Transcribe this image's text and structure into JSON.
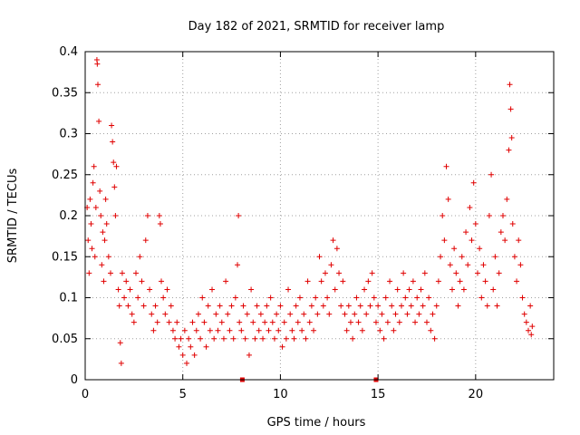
{
  "chart_data": {
    "type": "scatter",
    "title": "Day 182 of 2021, SRMTID for receiver lamp",
    "xlabel": "GPS time / hours",
    "ylabel": "SRMTID / TECUs",
    "xlim": [
      0,
      24
    ],
    "ylim": [
      0,
      0.4
    ],
    "xticks": [
      0,
      5,
      10,
      15,
      20
    ],
    "xtick_labels": [
      "0",
      "5",
      "10",
      "15",
      "20"
    ],
    "yticks": [
      0,
      0.05,
      0.1,
      0.15,
      0.2,
      0.25,
      0.3,
      0.35,
      0.4
    ],
    "ytick_labels": [
      "0",
      "0.05",
      "0.1",
      "0.15",
      "0.2",
      "0.25",
      "0.3",
      "0.35",
      "0.4"
    ],
    "grid": true,
    "marker": "plus",
    "color": "#e00000",
    "series": [
      {
        "name": "SRMTID",
        "points": [
          [
            0.1,
            0.21
          ],
          [
            0.15,
            0.17
          ],
          [
            0.2,
            0.13
          ],
          [
            0.25,
            0.22
          ],
          [
            0.3,
            0.19
          ],
          [
            0.35,
            0.16
          ],
          [
            0.4,
            0.24
          ],
          [
            0.45,
            0.26
          ],
          [
            0.5,
            0.15
          ],
          [
            0.55,
            0.21
          ],
          [
            0.6,
            0.39
          ],
          [
            0.62,
            0.385
          ],
          [
            0.65,
            0.36
          ],
          [
            0.7,
            0.315
          ],
          [
            0.75,
            0.23
          ],
          [
            0.8,
            0.2
          ],
          [
            0.85,
            0.14
          ],
          [
            0.9,
            0.18
          ],
          [
            0.95,
            0.12
          ],
          [
            1.0,
            0.17
          ],
          [
            1.05,
            0.22
          ],
          [
            1.1,
            0.19
          ],
          [
            1.2,
            0.15
          ],
          [
            1.3,
            0.13
          ],
          [
            1.35,
            0.31
          ],
          [
            1.4,
            0.29
          ],
          [
            1.45,
            0.265
          ],
          [
            1.5,
            0.235
          ],
          [
            1.55,
            0.2
          ],
          [
            1.6,
            0.26
          ],
          [
            1.7,
            0.11
          ],
          [
            1.75,
            0.09
          ],
          [
            1.8,
            0.045
          ],
          [
            1.85,
            0.02
          ],
          [
            1.9,
            0.13
          ],
          [
            2.0,
            0.1
          ],
          [
            2.1,
            0.12
          ],
          [
            2.2,
            0.09
          ],
          [
            2.3,
            0.11
          ],
          [
            2.4,
            0.08
          ],
          [
            2.5,
            0.07
          ],
          [
            2.6,
            0.13
          ],
          [
            2.7,
            0.1
          ],
          [
            2.8,
            0.15
          ],
          [
            2.9,
            0.12
          ],
          [
            3.0,
            0.09
          ],
          [
            3.1,
            0.17
          ],
          [
            3.2,
            0.2
          ],
          [
            3.3,
            0.11
          ],
          [
            3.4,
            0.08
          ],
          [
            3.5,
            0.06
          ],
          [
            3.6,
            0.09
          ],
          [
            3.7,
            0.07
          ],
          [
            3.8,
            0.2
          ],
          [
            3.85,
            0.19
          ],
          [
            3.9,
            0.12
          ],
          [
            4.0,
            0.1
          ],
          [
            4.1,
            0.08
          ],
          [
            4.2,
            0.11
          ],
          [
            4.3,
            0.07
          ],
          [
            4.4,
            0.09
          ],
          [
            4.5,
            0.06
          ],
          [
            4.6,
            0.05
          ],
          [
            4.7,
            0.07
          ],
          [
            4.8,
            0.04
          ],
          [
            4.9,
            0.05
          ],
          [
            5.0,
            0.03
          ],
          [
            5.1,
            0.06
          ],
          [
            5.2,
            0.02
          ],
          [
            5.3,
            0.05
          ],
          [
            5.4,
            0.04
          ],
          [
            5.5,
            0.07
          ],
          [
            5.6,
            0.03
          ],
          [
            5.7,
            0.06
          ],
          [
            5.8,
            0.08
          ],
          [
            5.9,
            0.05
          ],
          [
            6.0,
            0.1
          ],
          [
            6.1,
            0.07
          ],
          [
            6.2,
            0.04
          ],
          [
            6.3,
            0.09
          ],
          [
            6.4,
            0.06
          ],
          [
            6.5,
            0.11
          ],
          [
            6.6,
            0.05
          ],
          [
            6.7,
            0.08
          ],
          [
            6.8,
            0.06
          ],
          [
            6.9,
            0.09
          ],
          [
            7.0,
            0.07
          ],
          [
            7.1,
            0.05
          ],
          [
            7.2,
            0.12
          ],
          [
            7.3,
            0.08
          ],
          [
            7.4,
            0.06
          ],
          [
            7.5,
            0.09
          ],
          [
            7.6,
            0.05
          ],
          [
            7.7,
            0.1
          ],
          [
            7.8,
            0.14
          ],
          [
            7.9,
            0.07
          ],
          [
            7.85,
            0.2
          ],
          [
            8.0,
            0.06
          ],
          [
            8.1,
            0.09
          ],
          [
            8.2,
            0.05
          ],
          [
            8.3,
            0.08
          ],
          [
            8.4,
            0.03
          ],
          [
            8.5,
            0.11
          ],
          [
            8.6,
            0.07
          ],
          [
            8.7,
            0.05
          ],
          [
            8.8,
            0.09
          ],
          [
            8.9,
            0.06
          ],
          [
            9.0,
            0.08
          ],
          [
            9.1,
            0.05
          ],
          [
            9.2,
            0.07
          ],
          [
            9.3,
            0.09
          ],
          [
            9.4,
            0.06
          ],
          [
            9.5,
            0.1
          ],
          [
            9.6,
            0.07
          ],
          [
            9.7,
            0.05
          ],
          [
            9.8,
            0.08
          ],
          [
            9.9,
            0.06
          ],
          [
            10.0,
            0.09
          ],
          [
            10.1,
            0.04
          ],
          [
            10.2,
            0.07
          ],
          [
            10.3,
            0.05
          ],
          [
            10.4,
            0.11
          ],
          [
            10.5,
            0.08
          ],
          [
            10.6,
            0.06
          ],
          [
            10.7,
            0.05
          ],
          [
            10.8,
            0.09
          ],
          [
            10.9,
            0.07
          ],
          [
            11.0,
            0.1
          ],
          [
            11.1,
            0.06
          ],
          [
            11.2,
            0.08
          ],
          [
            11.3,
            0.05
          ],
          [
            11.4,
            0.12
          ],
          [
            11.5,
            0.07
          ],
          [
            11.6,
            0.09
          ],
          [
            11.7,
            0.06
          ],
          [
            11.8,
            0.1
          ],
          [
            11.9,
            0.08
          ],
          [
            12.0,
            0.15
          ],
          [
            12.1,
            0.12
          ],
          [
            12.2,
            0.09
          ],
          [
            12.3,
            0.13
          ],
          [
            12.4,
            0.1
          ],
          [
            12.5,
            0.08
          ],
          [
            12.6,
            0.14
          ],
          [
            12.7,
            0.17
          ],
          [
            12.8,
            0.11
          ],
          [
            12.9,
            0.16
          ],
          [
            13.0,
            0.13
          ],
          [
            13.1,
            0.09
          ],
          [
            13.2,
            0.12
          ],
          [
            13.3,
            0.08
          ],
          [
            13.4,
            0.06
          ],
          [
            13.5,
            0.09
          ],
          [
            13.6,
            0.07
          ],
          [
            13.7,
            0.05
          ],
          [
            13.8,
            0.08
          ],
          [
            13.9,
            0.1
          ],
          [
            14.0,
            0.07
          ],
          [
            14.1,
            0.09
          ],
          [
            14.2,
            0.06
          ],
          [
            14.3,
            0.11
          ],
          [
            14.4,
            0.08
          ],
          [
            14.5,
            0.12
          ],
          [
            14.6,
            0.09
          ],
          [
            14.7,
            0.13
          ],
          [
            14.8,
            0.1
          ],
          [
            14.9,
            0.07
          ],
          [
            15.0,
            0.09
          ],
          [
            15.1,
            0.06
          ],
          [
            15.2,
            0.08
          ],
          [
            15.3,
            0.05
          ],
          [
            15.4,
            0.1
          ],
          [
            15.5,
            0.07
          ],
          [
            15.6,
            0.12
          ],
          [
            15.7,
            0.09
          ],
          [
            15.8,
            0.06
          ],
          [
            15.9,
            0.08
          ],
          [
            16.0,
            0.11
          ],
          [
            16.1,
            0.07
          ],
          [
            16.2,
            0.09
          ],
          [
            16.3,
            0.13
          ],
          [
            16.4,
            0.1
          ],
          [
            16.5,
            0.08
          ],
          [
            16.6,
            0.11
          ],
          [
            16.7,
            0.09
          ],
          [
            16.8,
            0.12
          ],
          [
            16.9,
            0.07
          ],
          [
            17.0,
            0.1
          ],
          [
            17.1,
            0.08
          ],
          [
            17.2,
            0.11
          ],
          [
            17.3,
            0.09
          ],
          [
            17.4,
            0.13
          ],
          [
            17.5,
            0.07
          ],
          [
            17.6,
            0.1
          ],
          [
            17.7,
            0.06
          ],
          [
            17.8,
            0.08
          ],
          [
            17.9,
            0.05
          ],
          [
            18.0,
            0.09
          ],
          [
            18.1,
            0.12
          ],
          [
            18.2,
            0.15
          ],
          [
            18.3,
            0.2
          ],
          [
            18.4,
            0.17
          ],
          [
            18.5,
            0.26
          ],
          [
            18.6,
            0.22
          ],
          [
            18.7,
            0.14
          ],
          [
            18.8,
            0.11
          ],
          [
            18.9,
            0.16
          ],
          [
            19.0,
            0.13
          ],
          [
            19.1,
            0.09
          ],
          [
            19.2,
            0.12
          ],
          [
            19.3,
            0.15
          ],
          [
            19.4,
            0.11
          ],
          [
            19.5,
            0.18
          ],
          [
            19.6,
            0.14
          ],
          [
            19.7,
            0.21
          ],
          [
            19.8,
            0.17
          ],
          [
            19.9,
            0.24
          ],
          [
            20.0,
            0.19
          ],
          [
            20.1,
            0.13
          ],
          [
            20.2,
            0.16
          ],
          [
            20.3,
            0.1
          ],
          [
            20.4,
            0.14
          ],
          [
            20.5,
            0.12
          ],
          [
            20.6,
            0.09
          ],
          [
            20.7,
            0.2
          ],
          [
            20.8,
            0.25
          ],
          [
            20.9,
            0.11
          ],
          [
            21.0,
            0.15
          ],
          [
            21.1,
            0.09
          ],
          [
            21.2,
            0.13
          ],
          [
            21.3,
            0.18
          ],
          [
            21.4,
            0.2
          ],
          [
            21.5,
            0.17
          ],
          [
            21.6,
            0.22
          ],
          [
            21.7,
            0.28
          ],
          [
            21.75,
            0.36
          ],
          [
            21.8,
            0.33
          ],
          [
            21.85,
            0.295
          ],
          [
            21.9,
            0.19
          ],
          [
            22.0,
            0.15
          ],
          [
            22.1,
            0.12
          ],
          [
            22.2,
            0.17
          ],
          [
            22.3,
            0.14
          ],
          [
            22.4,
            0.1
          ],
          [
            22.5,
            0.08
          ],
          [
            22.6,
            0.07
          ],
          [
            22.7,
            0.06
          ],
          [
            22.8,
            0.09
          ],
          [
            22.85,
            0.055
          ],
          [
            22.9,
            0.065
          ]
        ]
      }
    ],
    "marker_rows_on_x_axis": [
      8.05,
      14.9
    ]
  }
}
